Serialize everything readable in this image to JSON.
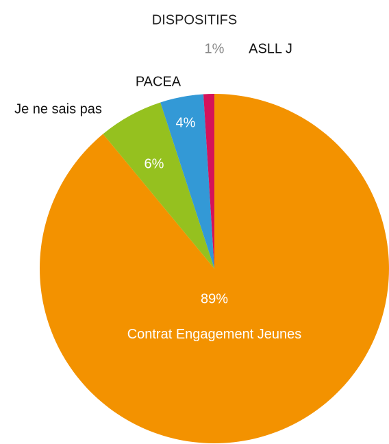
{
  "chart_data": {
    "type": "pie",
    "title": "DISPOSITIFS",
    "categories": [
      "Contrat Engagement Jeunes",
      "Je ne sais pas",
      "PACEA",
      "ASLL J"
    ],
    "values": [
      89,
      6,
      4,
      1
    ],
    "value_labels": [
      "89%",
      "6%",
      "4%",
      "1%"
    ],
    "colors": [
      "#F39200",
      "#95C11F",
      "#3399D6",
      "#D5135A"
    ]
  }
}
